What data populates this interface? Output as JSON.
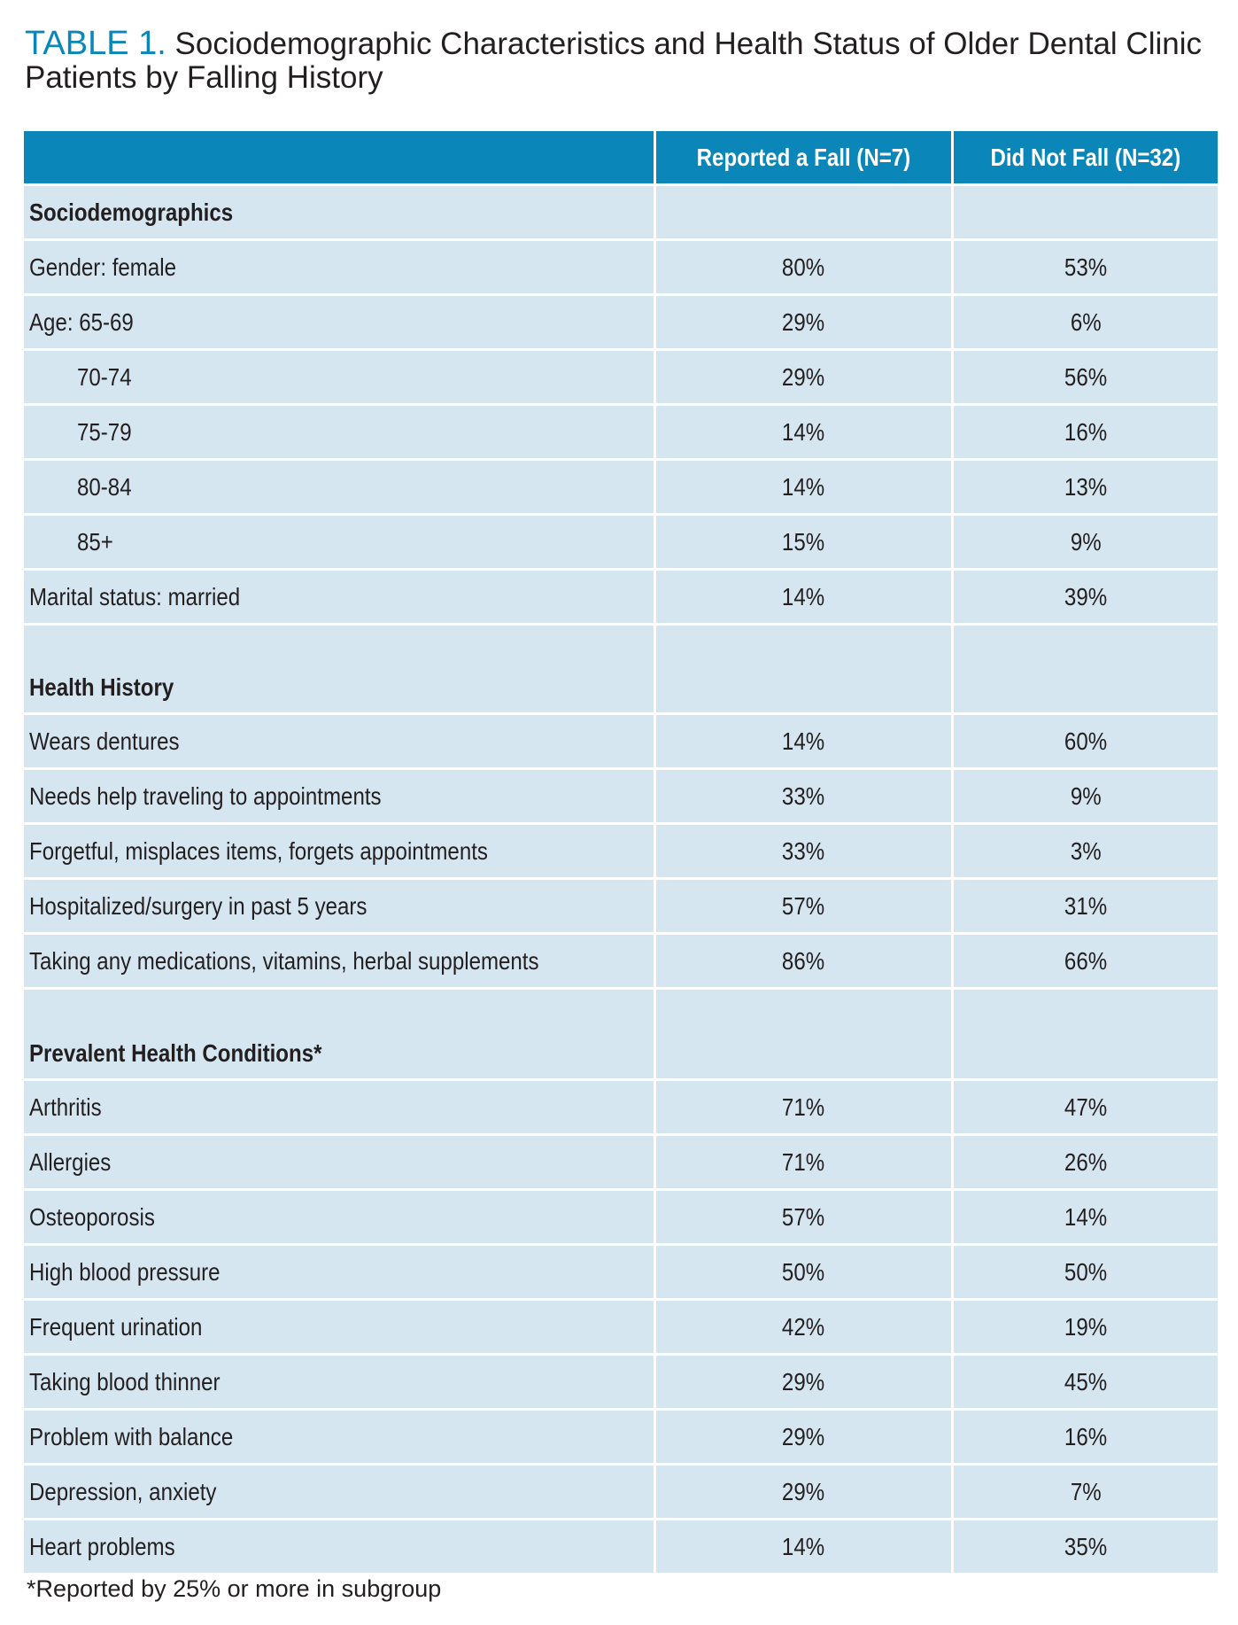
{
  "title": {
    "label": "TABLE 1.",
    "line1": "Sociodemographic Characteristics and Health Status of Older Dental Clinic",
    "line2": "Patients by Falling History"
  },
  "columns": [
    "",
    "Reported a Fall (N=7)",
    "Did Not Fall (N=32)"
  ],
  "sections": [
    {
      "heading": "Sociodemographics",
      "rows": [
        {
          "label": "Gender: female",
          "fall": "80%",
          "nofall": "53%",
          "indent": false
        },
        {
          "label": "Age: 65-69",
          "fall": "29%",
          "nofall": "6%",
          "indent": false
        },
        {
          "label": "70-74",
          "fall": "29%",
          "nofall": "56%",
          "indent": true
        },
        {
          "label": "75-79",
          "fall": "14%",
          "nofall": "16%",
          "indent": true
        },
        {
          "label": "80-84",
          "fall": "14%",
          "nofall": "13%",
          "indent": true
        },
        {
          "label": "85+",
          "fall": "15%",
          "nofall": "9%",
          "indent": true
        },
        {
          "label": "Marital status: married",
          "fall": "14%",
          "nofall": "39%",
          "indent": false
        }
      ]
    },
    {
      "heading": "Health History",
      "rows": [
        {
          "label": "Wears dentures",
          "fall": "14%",
          "nofall": "60%",
          "indent": false
        },
        {
          "label": "Needs help traveling to appointments",
          "fall": "33%",
          "nofall": "9%",
          "indent": false
        },
        {
          "label": "Forgetful, misplaces items, forgets appointments",
          "fall": "33%",
          "nofall": "3%",
          "indent": false
        },
        {
          "label": "Hospitalized/surgery in past 5 years",
          "fall": "57%",
          "nofall": "31%",
          "indent": false
        },
        {
          "label": "Taking any medications, vitamins, herbal supplements",
          "fall": "86%",
          "nofall": "66%",
          "indent": false
        }
      ]
    },
    {
      "heading": "Prevalent Health Conditions*",
      "rows": [
        {
          "label": "Arthritis",
          "fall": "71%",
          "nofall": "47%",
          "indent": false
        },
        {
          "label": "Allergies",
          "fall": "71%",
          "nofall": "26%",
          "indent": false
        },
        {
          "label": "Osteoporosis",
          "fall": "57%",
          "nofall": "14%",
          "indent": false
        },
        {
          "label": "High blood pressure",
          "fall": "50%",
          "nofall": "50%",
          "indent": false
        },
        {
          "label": "Frequent urination",
          "fall": "42%",
          "nofall": "19%",
          "indent": false
        },
        {
          "label": "Taking blood thinner",
          "fall": "29%",
          "nofall": "45%",
          "indent": false
        },
        {
          "label": "Problem with balance",
          "fall": "29%",
          "nofall": "16%",
          "indent": false
        },
        {
          "label": "Depression, anxiety",
          "fall": "29%",
          "nofall": "7%",
          "indent": false
        },
        {
          "label": "Heart problems",
          "fall": "14%",
          "nofall": "35%",
          "indent": false
        }
      ]
    }
  ],
  "footnote": "*Reported by 25% or more in subgroup",
  "colors": {
    "header_bg": "#0a86b8",
    "row_bg": "#d5e6f1",
    "title_accent": "#0a86b8"
  }
}
